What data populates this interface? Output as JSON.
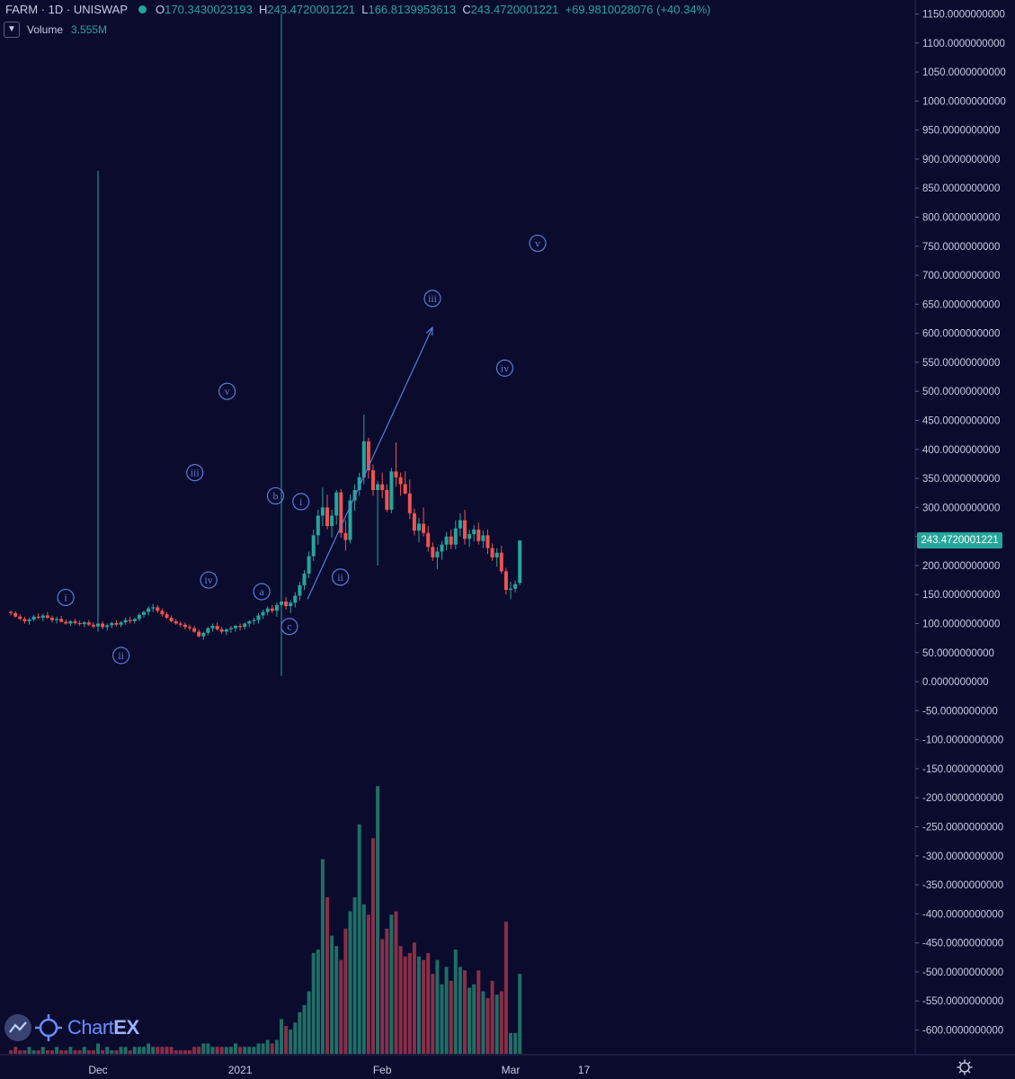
{
  "header": {
    "symbol": "FARM · 1D · UNISWAP",
    "open_label": "O",
    "open": "170.3430023193",
    "high_label": "H",
    "high": "243.4720001221",
    "low_label": "L",
    "low": "166.8139953613",
    "close_label": "C",
    "close": "243.4720001221",
    "change": "+69.9810028076 (+40.34%)"
  },
  "volume_legend": {
    "label": "Volume",
    "value": "3.555M",
    "toggle_icon": "chevron-down-icon"
  },
  "price_tag": "243.4720001221",
  "logo": {
    "text_a": "Chart",
    "text_b": "EX"
  },
  "colors": {
    "bg": "#0b0b2e",
    "up": "#26a69a",
    "down": "#ef5350",
    "wave": "#5a7cd8",
    "axis_text": "#c8cbe0"
  },
  "chart_data": {
    "type": "candlestick",
    "symbol": "FARM",
    "interval": "1D",
    "exchange": "UNISWAP",
    "ylim": [
      -630,
      1170
    ],
    "y_ticks": [
      "1150.0000000000",
      "1100.0000000000",
      "1050.0000000000",
      "1000.0000000000",
      "950.0000000000",
      "900.0000000000",
      "850.0000000000",
      "800.0000000000",
      "750.0000000000",
      "700.0000000000",
      "650.0000000000",
      "600.0000000000",
      "550.0000000000",
      "500.0000000000",
      "450.0000000000",
      "400.0000000000",
      "350.0000000000",
      "300.0000000000",
      "250.0000000000",
      "200.0000000000",
      "150.0000000000",
      "100.0000000000",
      "50.0000000000",
      "0.0000000000",
      "-50.0000000000",
      "-100.0000000000",
      "-150.0000000000",
      "-200.0000000000",
      "-250.0000000000",
      "-300.0000000000",
      "-350.0000000000",
      "-400.0000000000",
      "-450.0000000000",
      "-500.0000000000",
      "-550.0000000000",
      "-600.0000000000"
    ],
    "x_ticks": [
      {
        "label": "Dec",
        "day": 0
      },
      {
        "label": "2021",
        "day": 31
      },
      {
        "label": "Feb",
        "day": 62
      },
      {
        "label": "Mar",
        "day": 90
      },
      {
        "label": "17",
        "day": 106
      }
    ],
    "day0_date": "2020-12-01",
    "candles": [
      [
        -19,
        120,
        123,
        114,
        118,
        1
      ],
      [
        -18,
        118,
        121,
        110,
        112,
        2
      ],
      [
        -17,
        112,
        116,
        106,
        108,
        1
      ],
      [
        -16,
        108,
        112,
        100,
        104,
        1
      ],
      [
        -15,
        104,
        110,
        98,
        107,
        2
      ],
      [
        -14,
        107,
        115,
        104,
        112,
        1
      ],
      [
        -13,
        112,
        118,
        108,
        110,
        1
      ],
      [
        -12,
        110,
        117,
        104,
        114,
        2
      ],
      [
        -11,
        114,
        120,
        108,
        110,
        1
      ],
      [
        -10,
        110,
        114,
        102,
        106,
        1
      ],
      [
        -9,
        106,
        112,
        100,
        108,
        2
      ],
      [
        -8,
        108,
        113,
        102,
        103,
        1
      ],
      [
        -7,
        103,
        107,
        98,
        100,
        1
      ],
      [
        -6,
        100,
        106,
        96,
        104,
        2
      ],
      [
        -5,
        104,
        108,
        98,
        101,
        1
      ],
      [
        -4,
        101,
        105,
        96,
        99,
        1
      ],
      [
        -3,
        99,
        104,
        94,
        102,
        2
      ],
      [
        -2,
        102,
        106,
        96,
        98,
        1
      ],
      [
        -1,
        98,
        102,
        92,
        95,
        1
      ],
      [
        0,
        95,
        880,
        86,
        100,
        3
      ],
      [
        1,
        100,
        104,
        90,
        94,
        1
      ],
      [
        2,
        94,
        100,
        88,
        97,
        2
      ],
      [
        3,
        97,
        103,
        92,
        101,
        1
      ],
      [
        4,
        101,
        106,
        95,
        98,
        1
      ],
      [
        5,
        98,
        104,
        94,
        102,
        2
      ],
      [
        6,
        102,
        110,
        98,
        106,
        2
      ],
      [
        7,
        106,
        112,
        100,
        104,
        1
      ],
      [
        8,
        104,
        110,
        100,
        108,
        2
      ],
      [
        9,
        108,
        118,
        104,
        115,
        2
      ],
      [
        10,
        115,
        122,
        110,
        120,
        2
      ],
      [
        11,
        120,
        130,
        114,
        126,
        3
      ],
      [
        12,
        126,
        134,
        120,
        128,
        2
      ],
      [
        13,
        128,
        132,
        118,
        122,
        2
      ],
      [
        14,
        122,
        126,
        112,
        116,
        2
      ],
      [
        15,
        116,
        120,
        108,
        110,
        2
      ],
      [
        16,
        110,
        114,
        102,
        104,
        2
      ],
      [
        17,
        104,
        108,
        98,
        100,
        1
      ],
      [
        18,
        100,
        104,
        94,
        98,
        1
      ],
      [
        19,
        98,
        102,
        90,
        94,
        1
      ],
      [
        20,
        94,
        98,
        88,
        92,
        1
      ],
      [
        21,
        92,
        96,
        84,
        86,
        2
      ],
      [
        22,
        86,
        90,
        76,
        78,
        2
      ],
      [
        23,
        78,
        86,
        72,
        84,
        3
      ],
      [
        24,
        84,
        94,
        80,
        92,
        3
      ],
      [
        25,
        92,
        100,
        86,
        96,
        2
      ],
      [
        26,
        96,
        102,
        88,
        90,
        2
      ],
      [
        27,
        90,
        94,
        82,
        86,
        2
      ],
      [
        28,
        86,
        92,
        80,
        90,
        2
      ],
      [
        29,
        90,
        96,
        84,
        92,
        2
      ],
      [
        30,
        92,
        98,
        86,
        96,
        3
      ],
      [
        31,
        96,
        100,
        88,
        94,
        2
      ],
      [
        32,
        94,
        102,
        90,
        100,
        2
      ],
      [
        33,
        100,
        106,
        94,
        104,
        2
      ],
      [
        34,
        104,
        110,
        98,
        106,
        2
      ],
      [
        35,
        106,
        118,
        100,
        114,
        3
      ],
      [
        36,
        114,
        124,
        108,
        120,
        3
      ],
      [
        37,
        120,
        130,
        114,
        126,
        4
      ],
      [
        38,
        126,
        132,
        118,
        122,
        3
      ],
      [
        39,
        122,
        136,
        112,
        132,
        4
      ],
      [
        40,
        132,
        1150,
        10,
        138,
        10
      ],
      [
        41,
        138,
        146,
        124,
        130,
        8
      ],
      [
        42,
        130,
        140,
        118,
        136,
        7
      ],
      [
        43,
        136,
        154,
        128,
        148,
        9
      ],
      [
        44,
        148,
        172,
        140,
        166,
        12
      ],
      [
        45,
        166,
        192,
        158,
        186,
        14
      ],
      [
        46,
        186,
        224,
        178,
        216,
        18
      ],
      [
        47,
        216,
        262,
        208,
        252,
        29
      ],
      [
        48,
        252,
        296,
        236,
        286,
        30
      ],
      [
        49,
        286,
        334,
        268,
        300,
        56
      ],
      [
        50,
        300,
        322,
        262,
        268,
        45
      ],
      [
        51,
        268,
        296,
        248,
        286,
        34
      ],
      [
        52,
        286,
        330,
        270,
        326,
        31
      ],
      [
        53,
        326,
        332,
        248,
        256,
        27
      ],
      [
        54,
        256,
        278,
        226,
        244,
        36
      ],
      [
        55,
        244,
        322,
        238,
        312,
        41
      ],
      [
        56,
        312,
        340,
        294,
        330,
        45
      ],
      [
        57,
        330,
        360,
        320,
        352,
        66
      ],
      [
        58,
        352,
        460,
        340,
        414,
        43
      ],
      [
        59,
        414,
        420,
        350,
        364,
        40
      ],
      [
        60,
        364,
        374,
        320,
        330,
        62
      ],
      [
        61,
        330,
        346,
        200,
        340,
        77
      ],
      [
        62,
        340,
        360,
        316,
        330,
        33
      ],
      [
        63,
        330,
        340,
        292,
        296,
        36
      ],
      [
        64,
        296,
        368,
        290,
        362,
        40
      ],
      [
        65,
        362,
        412,
        336,
        352,
        41
      ],
      [
        66,
        352,
        360,
        320,
        340,
        31
      ],
      [
        67,
        340,
        362,
        322,
        324,
        28
      ],
      [
        68,
        324,
        348,
        280,
        290,
        29
      ],
      [
        69,
        290,
        298,
        252,
        260,
        32
      ],
      [
        70,
        260,
        282,
        240,
        272,
        28
      ],
      [
        71,
        272,
        300,
        250,
        256,
        27
      ],
      [
        72,
        256,
        268,
        224,
        232,
        29
      ],
      [
        73,
        232,
        240,
        208,
        214,
        23
      ],
      [
        74,
        214,
        232,
        194,
        224,
        27
      ],
      [
        75,
        224,
        242,
        210,
        236,
        20
      ],
      [
        76,
        236,
        258,
        226,
        250,
        25
      ],
      [
        77,
        250,
        262,
        228,
        236,
        21
      ],
      [
        78,
        236,
        278,
        228,
        264,
        30
      ],
      [
        79,
        264,
        290,
        250,
        278,
        25
      ],
      [
        80,
        278,
        296,
        236,
        246,
        24
      ],
      [
        81,
        246,
        262,
        232,
        254,
        19
      ],
      [
        82,
        254,
        270,
        242,
        262,
        20
      ],
      [
        83,
        262,
        274,
        236,
        242,
        24
      ],
      [
        84,
        242,
        260,
        230,
        252,
        18
      ],
      [
        85,
        252,
        262,
        220,
        230,
        16
      ],
      [
        86,
        230,
        238,
        208,
        214,
        21
      ],
      [
        87,
        214,
        230,
        198,
        222,
        17
      ],
      [
        88,
        222,
        234,
        186,
        190,
        18
      ],
      [
        89,
        190,
        196,
        150,
        158,
        38
      ],
      [
        90,
        158,
        172,
        142,
        160,
        6
      ],
      [
        91,
        160,
        174,
        154,
        168,
        6
      ],
      [
        92,
        170,
        244,
        166,
        243,
        23
      ]
    ]
  },
  "annotations": {
    "labels": [
      {
        "text": "i",
        "day": -7.0,
        "price": 145
      },
      {
        "text": "ii",
        "day": 5.0,
        "price": 45
      },
      {
        "text": "iii",
        "day": 21.0,
        "price": 360
      },
      {
        "text": "iv",
        "day": 24.0,
        "price": 175
      },
      {
        "text": "v",
        "day": 28.0,
        "price": 500
      },
      {
        "text": "a",
        "day": 35.5,
        "price": 155
      },
      {
        "text": "b",
        "day": 38.5,
        "price": 320
      },
      {
        "text": "c",
        "day": 41.5,
        "price": 95
      },
      {
        "text": "i",
        "day": 44.0,
        "price": 310
      },
      {
        "text": "ii",
        "day": 47.0,
        "price": 180
      },
      {
        "text": "iii",
        "day": 54.0,
        "price": 660
      },
      {
        "text": "iv",
        "day": 59.5,
        "price": 540
      },
      {
        "text": "v",
        "day": 62.0,
        "price": 755
      }
    ],
    "arrow": {
      "from": {
        "day": 44.5,
        "price": 142
      },
      "to": {
        "day": 54.0,
        "price": 610
      }
    }
  }
}
